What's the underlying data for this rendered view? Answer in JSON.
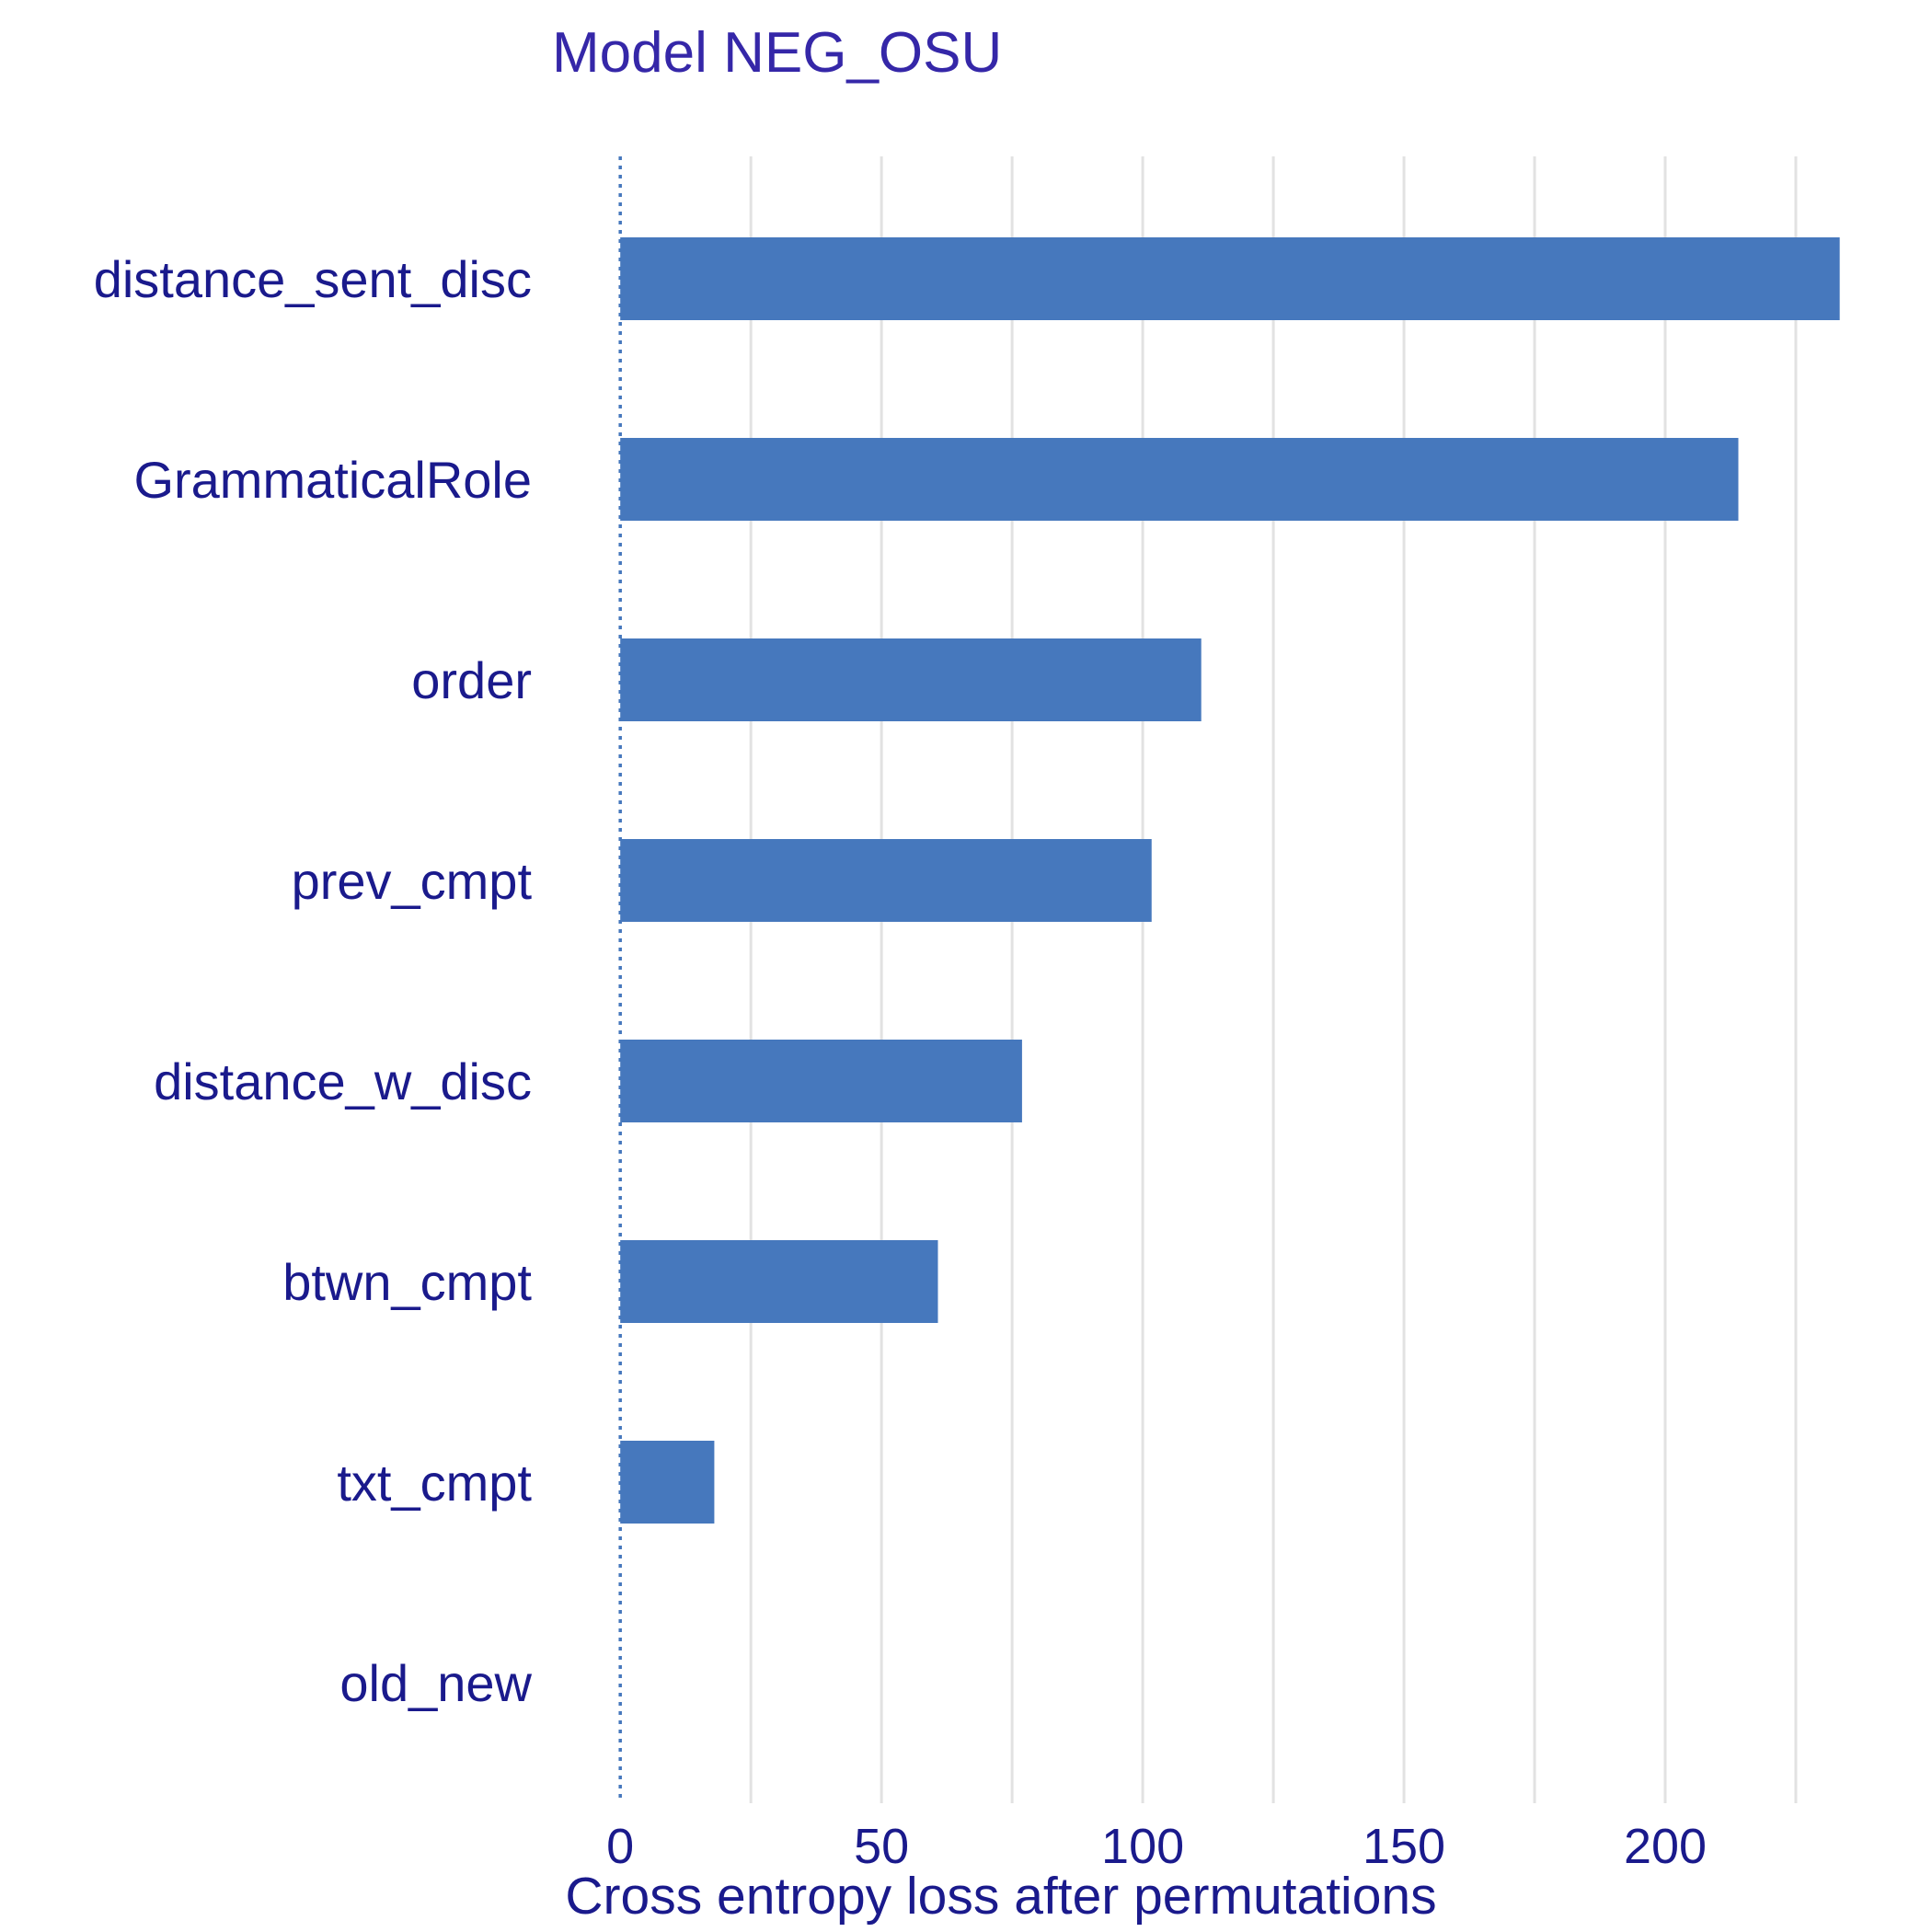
{
  "chart_data": {
    "type": "bar",
    "orientation": "horizontal",
    "title": "Model NEG_OSU",
    "xlabel": "Cross entropy loss after permutations",
    "ylabel": "",
    "categories": [
      "distance_sent_disc",
      "GrammaticalRole",
      "order",
      "prev_cmpt",
      "distance_w_disc",
      "btwn_cmpt",
      "txt_cmpt",
      "old_new"
    ],
    "values": [
      233.4,
      214.0,
      111.2,
      101.7,
      76.9,
      60.8,
      18.0,
      0
    ],
    "xlim": [
      -2.5,
      240.5
    ],
    "xticks": [
      0,
      50,
      100,
      150,
      200
    ],
    "xtick_labels": [
      "0",
      "50",
      "100",
      "150",
      "200"
    ],
    "minor_gridlines": [
      25,
      75,
      125,
      175,
      225
    ],
    "baseline": 0,
    "grid": "vertical",
    "legend": "none",
    "colors": {
      "bar": "#4678bd",
      "text": "#1a1a8c",
      "title": "#3527a8",
      "grid": "#e2e2e2",
      "baseline": "#4678bd"
    }
  }
}
